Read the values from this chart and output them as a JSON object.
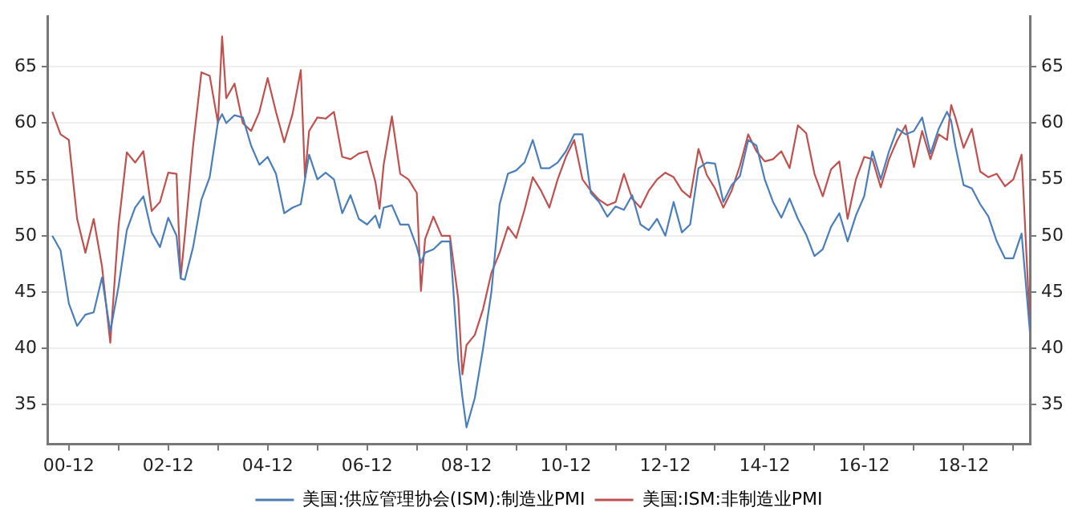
{
  "chart_data": {
    "type": "line",
    "x": [
      "2000-08",
      "2000-10",
      "2000-12",
      "2001-02",
      "2001-04",
      "2001-06",
      "2001-08",
      "2001-10",
      "2001-12",
      "2002-02",
      "2002-04",
      "2002-06",
      "2002-08",
      "2002-10",
      "2002-12",
      "2003-02",
      "2003-03",
      "2003-04",
      "2003-06",
      "2003-08",
      "2003-10",
      "2003-12",
      "2004-01",
      "2004-02",
      "2004-04",
      "2004-06",
      "2004-08",
      "2004-10",
      "2004-12",
      "2005-02",
      "2005-04",
      "2005-06",
      "2005-08",
      "2005-09",
      "2005-10",
      "2005-12",
      "2006-02",
      "2006-04",
      "2006-06",
      "2006-08",
      "2006-10",
      "2006-12",
      "2007-02",
      "2007-03",
      "2007-04",
      "2007-06",
      "2007-08",
      "2007-10",
      "2007-12",
      "2008-01",
      "2008-02",
      "2008-04",
      "2008-06",
      "2008-08",
      "2008-10",
      "2008-11",
      "2008-12",
      "2009-02",
      "2009-04",
      "2009-06",
      "2009-08",
      "2009-10",
      "2009-12",
      "2010-02",
      "2010-04",
      "2010-06",
      "2010-08",
      "2010-10",
      "2010-12",
      "2011-02",
      "2011-04",
      "2011-06",
      "2011-08",
      "2011-10",
      "2011-12",
      "2012-02",
      "2012-04",
      "2012-06",
      "2012-08",
      "2012-10",
      "2012-12",
      "2013-02",
      "2013-04",
      "2013-06",
      "2013-08",
      "2013-10",
      "2013-12",
      "2014-02",
      "2014-04",
      "2014-06",
      "2014-08",
      "2014-10",
      "2014-12",
      "2015-02",
      "2015-04",
      "2015-06",
      "2015-08",
      "2015-10",
      "2015-12",
      "2016-02",
      "2016-04",
      "2016-06",
      "2016-08",
      "2016-10",
      "2016-12",
      "2017-02",
      "2017-04",
      "2017-06",
      "2017-08",
      "2017-10",
      "2017-12",
      "2018-02",
      "2018-04",
      "2018-06",
      "2018-08",
      "2018-09",
      "2018-10",
      "2018-12",
      "2019-02",
      "2019-04",
      "2019-06",
      "2019-08",
      "2019-10",
      "2019-12",
      "2020-02",
      "2020-04"
    ],
    "series": [
      {
        "name": "美国:供应管理协会(ISM):制造业PMI",
        "color": "#4a7ebb",
        "values": [
          50,
          48.7,
          44,
          42,
          43,
          43.2,
          46.3,
          41.5,
          45.5,
          50.5,
          52.5,
          53.5,
          50.3,
          49,
          51.6,
          50,
          46.2,
          46.1,
          49,
          53.2,
          55.2,
          60.1,
          60.8,
          60,
          60.7,
          60.5,
          58,
          56.3,
          57,
          55.5,
          52,
          52.5,
          52.8,
          55,
          57.2,
          55,
          55.6,
          55,
          52,
          53.6,
          51.5,
          51,
          51.8,
          50.7,
          52.5,
          52.7,
          51,
          51,
          49,
          47.6,
          48.5,
          48.8,
          49.5,
          49.5,
          39,
          35.7,
          33,
          35.6,
          40,
          45,
          52.8,
          55.5,
          55.8,
          56.5,
          58.5,
          56,
          56,
          56.5,
          57.5,
          59,
          59,
          53.8,
          53,
          51.7,
          52.6,
          52.3,
          53.6,
          51,
          50.5,
          51.5,
          50,
          53,
          50.3,
          51,
          56,
          56.5,
          56.4,
          53,
          54.5,
          55.3,
          58.5,
          58,
          55,
          53,
          51.6,
          53.3,
          51.5,
          50.1,
          48.2,
          48.8,
          50.8,
          52,
          49.5,
          51.8,
          53.5,
          57.5,
          55,
          57.5,
          59.5,
          59,
          59.3,
          60.5,
          57.3,
          59.5,
          61,
          60.2,
          58,
          54.5,
          54.2,
          52.8,
          51.7,
          49.5,
          48,
          48,
          50.2,
          41.5
        ]
      },
      {
        "name": "美国:ISM:非制造业PMI",
        "color": "#c0504d",
        "values": [
          61,
          59,
          58.5,
          51.5,
          48.5,
          51.5,
          47.3,
          40.5,
          50.9,
          57.4,
          56.5,
          57.5,
          52.2,
          53,
          55.6,
          55.5,
          46.3,
          50,
          58,
          64.5,
          64.2,
          60,
          67.7,
          62.2,
          63.5,
          60,
          59.3,
          61,
          64,
          61,
          58.3,
          60.8,
          64.7,
          55.2,
          59.3,
          60.5,
          60.4,
          61,
          57,
          56.8,
          57.3,
          57.5,
          54.8,
          52.4,
          56.3,
          60.6,
          55.5,
          55,
          53.8,
          45.1,
          49.7,
          51.7,
          50,
          50,
          44.4,
          37.7,
          40.3,
          41.2,
          43.5,
          46.7,
          48.5,
          50.8,
          49.8,
          52.3,
          55.2,
          54,
          52.5,
          55,
          57,
          58.5,
          55,
          54,
          53.2,
          52.7,
          53,
          55.5,
          53.3,
          52.5,
          54,
          55,
          55.6,
          55.2,
          54,
          53.4,
          57.7,
          55.4,
          54.2,
          52.5,
          54,
          56.2,
          59,
          57.5,
          56.6,
          56.8,
          57.5,
          56,
          59.8,
          59.1,
          55.5,
          53.5,
          55.9,
          56.6,
          51.5,
          55,
          57,
          56.8,
          54.3,
          56.8,
          58.5,
          59.8,
          56.1,
          59.3,
          56.8,
          59,
          58.5,
          61.6,
          60.5,
          57.8,
          59.5,
          55.7,
          55.2,
          55.5,
          54.4,
          55,
          57.2,
          42.1
        ]
      }
    ],
    "xlim": [
      "2000-07",
      "2020-04"
    ],
    "xticks": [
      {
        "value": "2000-12",
        "label": "00-12"
      },
      {
        "value": "2001-12",
        "label": null
      },
      {
        "value": "2002-12",
        "label": "02-12"
      },
      {
        "value": "2003-12",
        "label": null
      },
      {
        "value": "2004-12",
        "label": "04-12"
      },
      {
        "value": "2005-12",
        "label": null
      },
      {
        "value": "2006-12",
        "label": "06-12"
      },
      {
        "value": "2007-12",
        "label": null
      },
      {
        "value": "2008-12",
        "label": "08-12"
      },
      {
        "value": "2009-12",
        "label": null
      },
      {
        "value": "2010-12",
        "label": "10-12"
      },
      {
        "value": "2011-12",
        "label": null
      },
      {
        "value": "2012-12",
        "label": "12-12"
      },
      {
        "value": "2013-12",
        "label": null
      },
      {
        "value": "2014-12",
        "label": "14-12"
      },
      {
        "value": "2015-12",
        "label": null
      },
      {
        "value": "2016-12",
        "label": "16-12"
      },
      {
        "value": "2017-12",
        "label": null
      },
      {
        "value": "2018-12",
        "label": "18-12"
      },
      {
        "value": "2019-12",
        "label": null
      }
    ],
    "ylim": [
      31.5,
      69.5
    ],
    "yticks": [
      35,
      40,
      45,
      50,
      55,
      60,
      65
    ],
    "y2lim": [
      31.5,
      69.5
    ],
    "y2ticks": [
      35,
      40,
      45,
      50,
      55,
      60,
      65
    ],
    "grid": "y",
    "legend": "bottom"
  }
}
